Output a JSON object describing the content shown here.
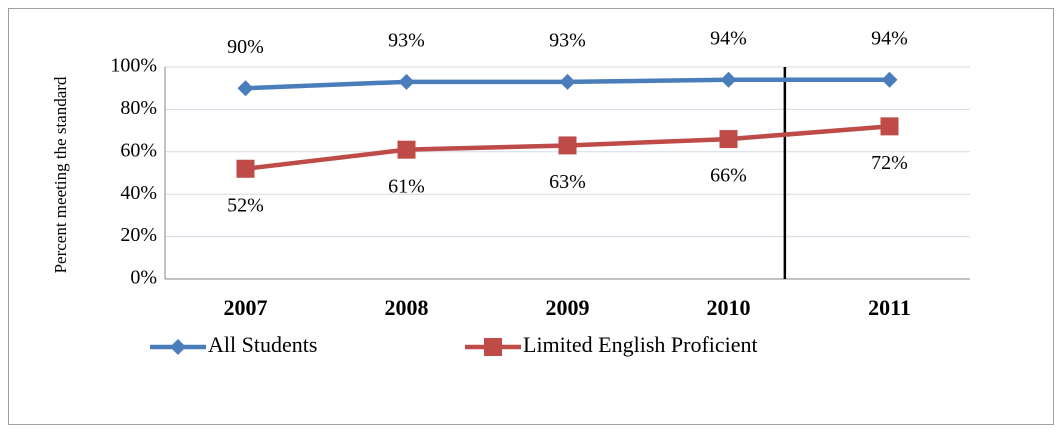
{
  "chart_data": {
    "type": "line",
    "ylabel": "Percent meeting the standard",
    "categories": [
      "2007",
      "2008",
      "2009",
      "2010",
      "2011"
    ],
    "series": [
      {
        "name": "All Students",
        "color": "#4a7ebb",
        "marker": "diamond",
        "values": [
          90,
          93,
          93,
          94,
          94
        ],
        "value_labels": [
          "90%",
          "93%",
          "93%",
          "94%",
          "94%"
        ],
        "label_position": "above"
      },
      {
        "name": "Limited English Proficient",
        "color": "#be4b48",
        "marker": "square",
        "values": [
          52,
          61,
          63,
          66,
          72
        ],
        "value_labels": [
          "52%",
          "61%",
          "63%",
          "66%",
          "72%"
        ],
        "label_position": "below"
      }
    ],
    "ylim": [
      0,
      100
    ],
    "yticks": [
      {
        "value": 0,
        "label": "0%"
      },
      {
        "value": 20,
        "label": "20%"
      },
      {
        "value": 40,
        "label": "40%"
      },
      {
        "value": 60,
        "label": "60%"
      },
      {
        "value": 80,
        "label": "80%"
      },
      {
        "value": 100,
        "label": "100%"
      }
    ],
    "grid": true,
    "legend": "bottom"
  }
}
